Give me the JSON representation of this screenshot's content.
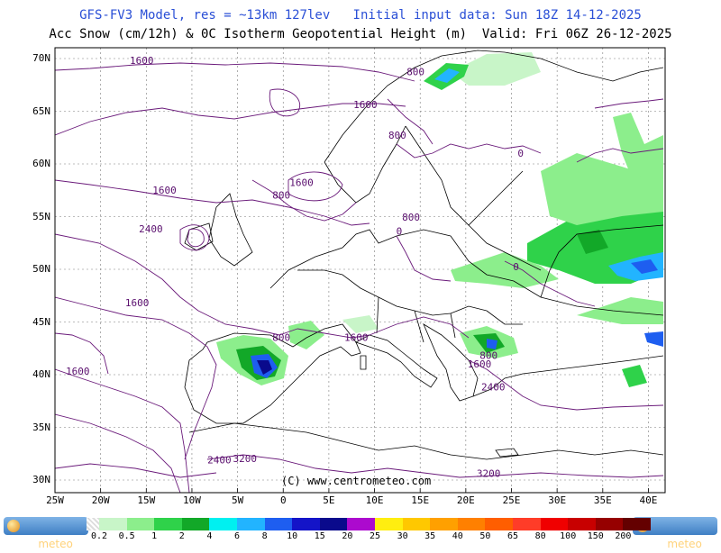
{
  "header": {
    "line1": "GFS-FV3 Model, res = ~13km 127lev   Initial input data: Sun 18Z 14-12-2025",
    "line2": "Acc Snow (cm/12h) & 0C Isotherm Geopotential Height (m)  Valid: Fri 06Z 26-12-2025"
  },
  "map": {
    "lat_labels": [
      "70N",
      "65N",
      "60N",
      "55N",
      "50N",
      "45N",
      "40N",
      "35N",
      "30N"
    ],
    "lon_labels": [
      "25W",
      "20W",
      "15W",
      "10W",
      "5W",
      "0",
      "5E",
      "10E",
      "15E",
      "20E",
      "25E",
      "30E",
      "35E",
      "40E"
    ],
    "contour_labels": [
      {
        "text": "1600",
        "lon": -15.5,
        "lat": 69.5
      },
      {
        "text": "1600",
        "lon": 9,
        "lat": 65.3
      },
      {
        "text": "800",
        "lon": 14.5,
        "lat": 68.4
      },
      {
        "text": "800",
        "lon": 12.5,
        "lat": 62.4
      },
      {
        "text": "1600",
        "lon": -13,
        "lat": 57.2
      },
      {
        "text": "800",
        "lon": -0.2,
        "lat": 56.7
      },
      {
        "text": "1600",
        "lon": 2,
        "lat": 57.9
      },
      {
        "text": "2400",
        "lon": -14.5,
        "lat": 53.5
      },
      {
        "text": "800",
        "lon": 14,
        "lat": 54.6
      },
      {
        "text": "0",
        "lon": 12.7,
        "lat": 53.3
      },
      {
        "text": "0",
        "lon": 26,
        "lat": 60.7
      },
      {
        "text": "0",
        "lon": 25.5,
        "lat": 49.9
      },
      {
        "text": "1600",
        "lon": -16,
        "lat": 46.5
      },
      {
        "text": "800",
        "lon": -0.2,
        "lat": 43.2
      },
      {
        "text": "1600",
        "lon": 8,
        "lat": 43.2
      },
      {
        "text": "800",
        "lon": 22.5,
        "lat": 41.5
      },
      {
        "text": "1600",
        "lon": 21.5,
        "lat": 40.7
      },
      {
        "text": "1600",
        "lon": -22.5,
        "lat": 40
      },
      {
        "text": "2400",
        "lon": 23,
        "lat": 38.5
      },
      {
        "text": "2400",
        "lon": -7,
        "lat": 31.6
      },
      {
        "text": "3200",
        "lon": -4.2,
        "lat": 31.7
      },
      {
        "text": "3200",
        "lon": 22.5,
        "lat": 30.3
      }
    ],
    "copyright": "(C) www.centrometeo.com"
  },
  "legend": {
    "values": [
      "0.2",
      "0.5",
      "1",
      "2",
      "4",
      "6",
      "8",
      "10",
      "15",
      "20",
      "25",
      "30",
      "35",
      "40",
      "50",
      "65",
      "80",
      "100",
      "150",
      "200"
    ],
    "colors": [
      "#c8f5c8",
      "#8cee8c",
      "#2fd24a",
      "#12a828",
      "#00f0f0",
      "#22b4ff",
      "#1e5ef0",
      "#1414c8",
      "#0a0a8c",
      "#ac0ace",
      "#ffee10",
      "#ffc800",
      "#ffa000",
      "#ff8000",
      "#ff5e00",
      "#ff3c28",
      "#f00000",
      "#c80000",
      "#960000",
      "#640000"
    ],
    "logo_left": {
      "pre": "centro",
      "post": "meteo"
    },
    "logo_right": {
      "pre": "centro",
      "post": "meteo"
    }
  }
}
